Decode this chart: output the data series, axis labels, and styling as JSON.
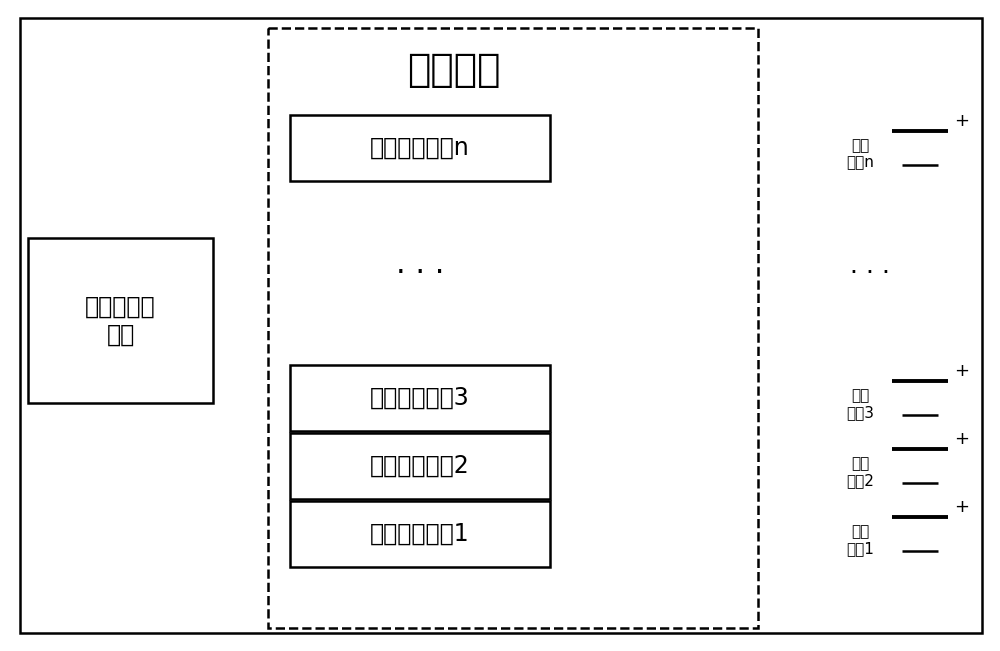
{
  "bg_color": "#ffffff",
  "line_color": "#000000",
  "fig_width": 10.0,
  "fig_height": 6.51,
  "dpi": 100,
  "lianjie_label": "连接底板",
  "left_box_label": "地面充放电\n设备",
  "module_labels": [
    "单体均衡模块n",
    "单体均衡模块3",
    "单体均衡模块2",
    "单体均衡模块1"
  ],
  "battery_labels": [
    "电池\n单体n",
    "电池\n单体3",
    "电池\n单体2",
    "电池\n单体1"
  ],
  "font_size_title": 28,
  "font_size_box": 17,
  "font_size_battery": 11,
  "font_size_plus": 13
}
